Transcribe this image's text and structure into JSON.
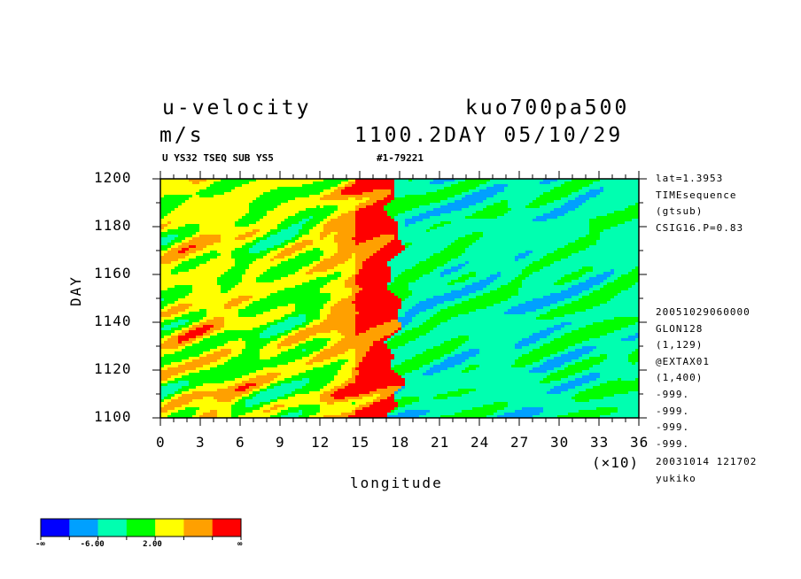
{
  "header": {
    "title_left": "u-velocity",
    "units": "m/s",
    "title_right": "kuo700pa500",
    "date_line": "1100.2DAY 05/10/29",
    "sub_left": "U YS32 TSEQ SUB YS5",
    "sub_right": "#1-79221"
  },
  "side_info": {
    "top": [
      "lat=1.3953",
      "TIMEsequence",
      "(gtsub)",
      "CSIG16.P=0.83"
    ],
    "middle": [
      "20051029060000",
      "GLON128",
      "(1,129)",
      "@EXTAX01",
      "(1,400)",
      "-999.",
      "-999.",
      "-999.",
      "-999."
    ],
    "bottom": [
      "20031014 121702",
      "yukiko"
    ]
  },
  "chart_data": {
    "type": "heatmap",
    "xlabel": "longitude",
    "ylabel": "DAY",
    "x_multiplier_label": "(×10)",
    "xlim": [
      0,
      36
    ],
    "ylim": [
      1100,
      1200
    ],
    "x_ticks": [
      "0",
      "3",
      "6",
      "9",
      "12",
      "15",
      "18",
      "21",
      "24",
      "27",
      "30",
      "33",
      "36"
    ],
    "y_ticks": [
      "1100",
      "1120",
      "1140",
      "1160",
      "1180",
      "1200"
    ],
    "colorbar": {
      "colors": [
        "#0000ff",
        "#00a0ff",
        "#00ffb0",
        "#00ff00",
        "#ffff00",
        "#ffa000",
        "#ff0000"
      ],
      "labels": [
        "-∞",
        "-6.00",
        "2.00",
        "∞"
      ]
    },
    "description_regions": [
      {
        "x_range": [
          0,
          12
        ],
        "dominant": "green-yellow"
      },
      {
        "x_range": [
          12,
          18
        ],
        "dominant": "orange-red"
      },
      {
        "x_range": [
          18,
          36
        ],
        "dominant": "cyan"
      }
    ]
  }
}
